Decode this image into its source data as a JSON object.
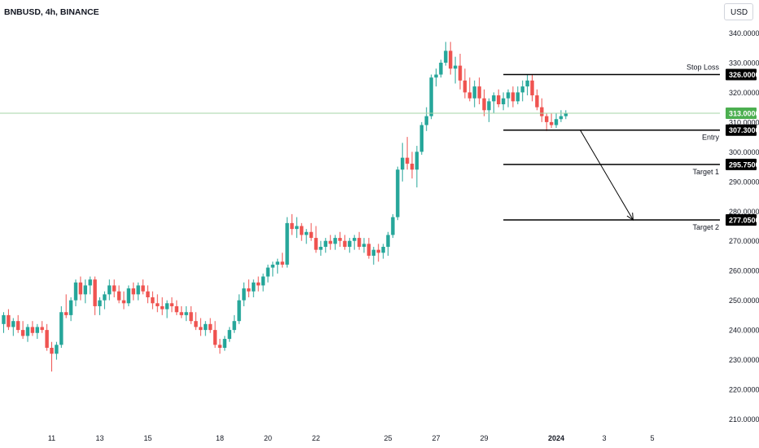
{
  "title": "BNBUSD, 4h, BINANCE",
  "currency": "USD",
  "colors": {
    "up": "#26a69a",
    "down": "#ef5350",
    "current_line": "#a5d6a7",
    "current_badge": "#4caf50",
    "level_line": "#000000"
  },
  "chart_data": {
    "type": "candlestick",
    "ylim": [
      205,
      343
    ],
    "y_ticks": [
      "210.0000",
      "220.0000",
      "230.0000",
      "240.0000",
      "250.0000",
      "260.0000",
      "270.0000",
      "280.0000",
      "290.0000",
      "300.0000",
      "310.0000",
      "320.0000",
      "330.0000",
      "340.0000"
    ],
    "x_ticks": [
      {
        "label": "11",
        "bar": 10
      },
      {
        "label": "13",
        "bar": 20
      },
      {
        "label": "15",
        "bar": 30
      },
      {
        "label": "18",
        "bar": 45
      },
      {
        "label": "20",
        "bar": 55
      },
      {
        "label": "22",
        "bar": 65
      },
      {
        "label": "25",
        "bar": 80
      },
      {
        "label": "27",
        "bar": 90
      },
      {
        "label": "29",
        "bar": 100
      },
      {
        "label": "2024",
        "bar": 115,
        "bold": true
      },
      {
        "label": "3",
        "bar": 125
      },
      {
        "label": "5",
        "bar": 135
      }
    ],
    "current_price": 313.0,
    "current_price_label": "313.0000",
    "levels": [
      {
        "name": "Stop Loss",
        "value": 326.0,
        "value_label": "326.0000",
        "start_bar": 104
      },
      {
        "name": "Entry",
        "value": 307.3,
        "value_label": "307.3000",
        "start_bar": 104
      },
      {
        "name": "Target 1",
        "value": 295.75,
        "value_label": "295.7500",
        "start_bar": 104
      },
      {
        "name": "Target 2",
        "value": 277.05,
        "value_label": "277.0500",
        "start_bar": 104
      }
    ],
    "projection_arrow": {
      "from": {
        "bar": 120,
        "value": 307.3
      },
      "to": {
        "bar": 131,
        "value": 277.05
      }
    },
    "candles": [
      [
        242,
        246,
        239,
        245
      ],
      [
        245,
        247,
        240,
        241
      ],
      [
        241,
        244,
        238,
        243
      ],
      [
        243,
        245,
        239,
        240
      ],
      [
        240,
        243,
        237,
        238
      ],
      [
        238,
        242,
        236,
        241
      ],
      [
        241,
        243,
        238,
        239
      ],
      [
        239,
        242,
        237,
        241
      ],
      [
        241,
        243,
        239,
        240
      ],
      [
        240,
        242,
        233,
        234
      ],
      [
        234,
        236,
        226,
        232
      ],
      [
        232,
        236,
        230,
        235
      ],
      [
        235,
        248,
        234,
        246
      ],
      [
        246,
        252,
        244,
        245
      ],
      [
        245,
        251,
        243,
        250
      ],
      [
        250,
        257,
        248,
        256
      ],
      [
        256,
        258,
        250,
        252
      ],
      [
        252,
        257,
        249,
        255
      ],
      [
        255,
        258,
        252,
        257
      ],
      [
        257,
        258,
        245,
        248
      ],
      [
        248,
        251,
        245,
        250
      ],
      [
        250,
        253,
        247,
        252
      ],
      [
        252,
        257,
        250,
        255
      ],
      [
        255,
        257,
        251,
        253
      ],
      [
        253,
        255,
        249,
        250
      ],
      [
        250,
        253,
        247,
        249
      ],
      [
        249,
        255,
        248,
        254
      ],
      [
        254,
        256,
        250,
        252
      ],
      [
        252,
        256,
        250,
        255
      ],
      [
        255,
        257,
        252,
        253
      ],
      [
        253,
        255,
        249,
        251
      ],
      [
        251,
        253,
        247,
        249
      ],
      [
        249,
        252,
        246,
        248
      ],
      [
        248,
        251,
        245,
        247
      ],
      [
        247,
        250,
        244,
        249
      ],
      [
        249,
        251,
        246,
        248
      ],
      [
        248,
        250,
        245,
        246
      ],
      [
        246,
        248,
        244,
        245
      ],
      [
        245,
        248,
        243,
        246
      ],
      [
        246,
        248,
        242,
        243
      ],
      [
        243,
        246,
        240,
        241
      ],
      [
        241,
        244,
        238,
        240
      ],
      [
        240,
        243,
        238,
        242
      ],
      [
        242,
        244,
        239,
        240
      ],
      [
        240,
        243,
        234,
        235
      ],
      [
        235,
        237,
        232,
        234
      ],
      [
        234,
        238,
        233,
        237
      ],
      [
        237,
        241,
        236,
        240
      ],
      [
        240,
        245,
        239,
        243
      ],
      [
        243,
        252,
        242,
        250
      ],
      [
        250,
        256,
        248,
        254
      ],
      [
        254,
        257,
        251,
        253
      ],
      [
        253,
        257,
        251,
        256
      ],
      [
        256,
        258,
        253,
        255
      ],
      [
        255,
        259,
        253,
        258
      ],
      [
        258,
        262,
        256,
        261
      ],
      [
        261,
        263,
        258,
        262
      ],
      [
        262,
        264,
        259,
        263
      ],
      [
        263,
        266,
        261,
        262
      ],
      [
        262,
        278,
        261,
        276
      ],
      [
        276,
        279,
        272,
        274
      ],
      [
        274,
        278,
        271,
        275
      ],
      [
        275,
        276,
        270,
        272
      ],
      [
        272,
        274,
        269,
        273
      ],
      [
        273,
        276,
        270,
        271
      ],
      [
        271,
        275,
        266,
        267
      ],
      [
        267,
        270,
        265,
        268
      ],
      [
        268,
        271,
        266,
        270
      ],
      [
        270,
        272,
        267,
        269
      ],
      [
        269,
        272,
        267,
        271
      ],
      [
        271,
        273,
        268,
        270
      ],
      [
        270,
        272,
        267,
        268
      ],
      [
        268,
        271,
        266,
        270
      ],
      [
        270,
        272,
        267,
        271
      ],
      [
        271,
        273,
        267,
        268
      ],
      [
        268,
        271,
        266,
        269
      ],
      [
        269,
        271,
        264,
        265
      ],
      [
        265,
        268,
        262,
        267
      ],
      [
        267,
        269,
        263,
        266
      ],
      [
        266,
        269,
        264,
        268
      ],
      [
        268,
        273,
        265,
        272
      ],
      [
        272,
        279,
        271,
        278
      ],
      [
        278,
        295,
        277,
        294
      ],
      [
        294,
        303,
        290,
        298
      ],
      [
        298,
        305,
        294,
        296
      ],
      [
        296,
        300,
        291,
        294
      ],
      [
        294,
        302,
        288,
        300
      ],
      [
        300,
        310,
        299,
        309
      ],
      [
        309,
        315,
        307,
        312
      ],
      [
        312,
        326,
        311,
        325
      ],
      [
        325,
        328,
        322,
        326
      ],
      [
        326,
        331,
        325,
        330
      ],
      [
        330,
        337,
        329,
        334
      ],
      [
        334,
        337,
        326,
        328
      ],
      [
        328,
        332,
        323,
        329
      ],
      [
        329,
        333,
        321,
        324
      ],
      [
        324,
        328,
        318,
        320
      ],
      [
        320,
        325,
        317,
        318
      ],
      [
        318,
        324,
        315,
        322
      ],
      [
        322,
        325,
        316,
        318
      ],
      [
        318,
        321,
        312,
        314
      ],
      [
        314,
        318,
        310,
        317
      ],
      [
        317,
        320,
        313,
        319
      ],
      [
        319,
        321,
        315,
        316
      ],
      [
        316,
        320,
        314,
        318
      ],
      [
        318,
        321,
        315,
        320
      ],
      [
        320,
        322,
        315,
        317
      ],
      [
        317,
        322,
        316,
        320
      ],
      [
        320,
        324,
        317,
        322
      ],
      [
        322,
        326,
        319,
        324
      ],
      [
        324,
        326,
        317,
        319
      ],
      [
        319,
        321,
        314,
        315
      ],
      [
        315,
        318,
        310,
        312
      ],
      [
        312,
        313,
        307,
        310
      ],
      [
        310,
        313,
        308,
        309
      ],
      [
        309,
        313,
        308,
        311
      ],
      [
        311,
        314,
        310,
        312
      ],
      [
        312,
        314,
        311,
        313
      ]
    ]
  }
}
